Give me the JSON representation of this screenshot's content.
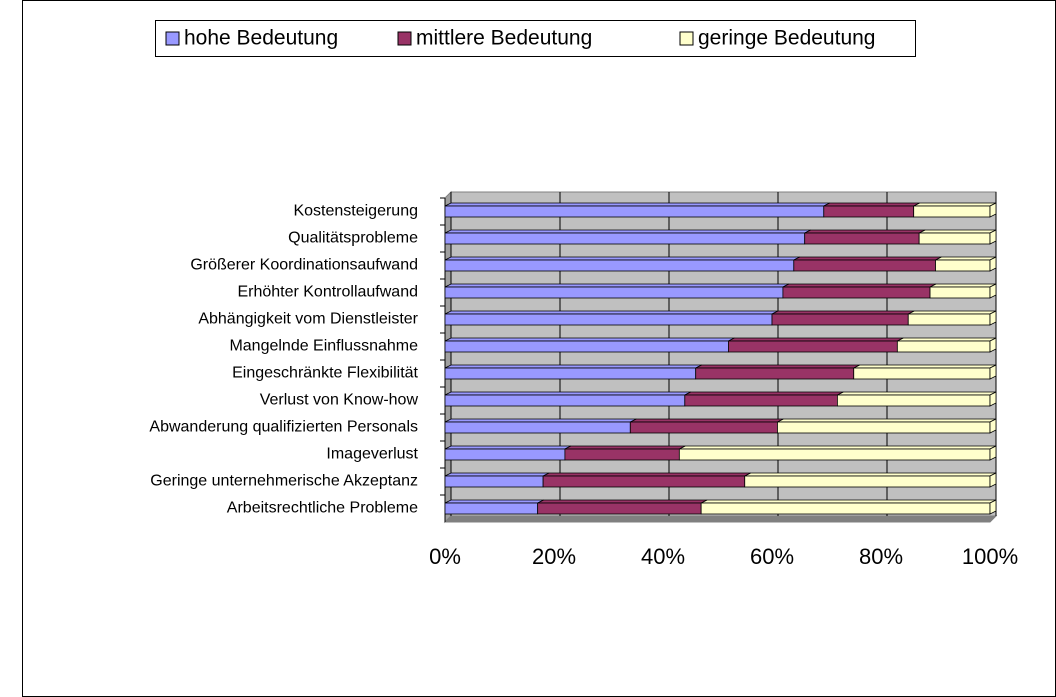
{
  "chart_data": {
    "type": "stacked-bar-horizontal-percent",
    "categories": [
      "Kostensteigerung",
      "Qualitätsprobleme",
      "Größerer Koordinationsaufwand",
      "Erhöhter Kontrollaufwand",
      "Abhängigkeit vom Dienstleister",
      "Mangelnde Einflussnahme",
      "Eingeschränkte Flexibilität",
      "Verlust von Know-how",
      "Abwanderung qualifizierten Personals",
      "Imageverlust",
      "Geringe unternehmerische Akzeptanz",
      "Arbeitsrechtliche Probleme"
    ],
    "series": [
      {
        "name": "hohe Bedeutung",
        "color": "#9999ff",
        "values": [
          69.5,
          66,
          64,
          62,
          60,
          52,
          46,
          44,
          34,
          22,
          18,
          17
        ]
      },
      {
        "name": "mittlere Bedeutung",
        "color": "#993366",
        "values": [
          16.5,
          21,
          26,
          27,
          25,
          31,
          29,
          28,
          27,
          21,
          37,
          30
        ]
      },
      {
        "name": "geringe Bedeutung",
        "color": "#ffffcc",
        "values": [
          14,
          13,
          10,
          11,
          15,
          17,
          25,
          28,
          39,
          57,
          45,
          53
        ]
      }
    ],
    "xlim": [
      0,
      100
    ],
    "xticks": [
      {
        "value": 0,
        "label": "0%"
      },
      {
        "value": 20,
        "label": "20%"
      },
      {
        "value": 40,
        "label": "40%"
      },
      {
        "value": 60,
        "label": "60%"
      },
      {
        "value": 80,
        "label": "80%"
      },
      {
        "value": 100,
        "label": "100%"
      }
    ],
    "grid": true,
    "legend": "top"
  }
}
